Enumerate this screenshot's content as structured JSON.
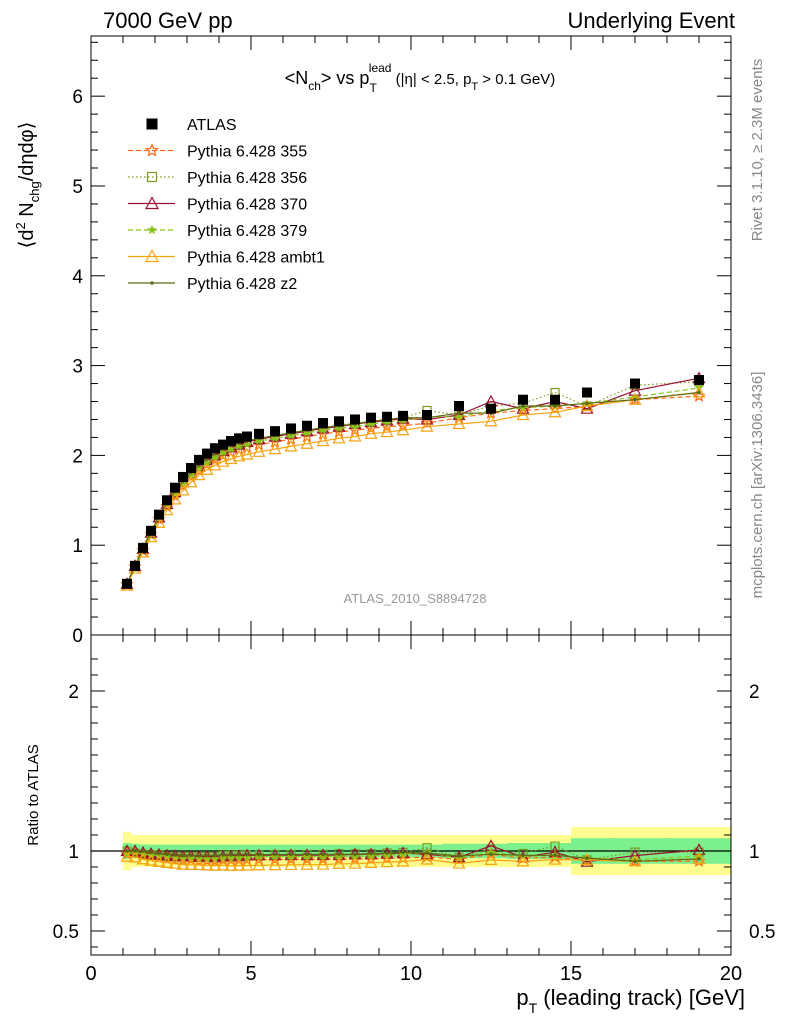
{
  "header": {
    "left": "7000 GeV pp",
    "right": "Underlying Event"
  },
  "side_labels": {
    "rivet": "Rivet 3.1.10, ≥ 2.3M events",
    "mcplots": "mcplots.cern.ch [arXiv:1306.3436]"
  },
  "analysis_id": "ATLAS_2010_S8894728",
  "chart_data": [
    {
      "type": "scatter",
      "title": "<N_ch> vs p_T^lead (|η| < 2.5, p_T > 0.1 GeV)",
      "title_parts": {
        "a": "<N",
        "a_sub": "ch",
        "b": "> vs p",
        "b_sub": "T",
        "b_sup": "lead",
        "c": " (|η| < 2.5, p",
        "c_sub": "T",
        "d": " > 0.1 GeV)"
      },
      "ylabel": "⟨d² N_chg/dηdφ⟩",
      "ylabel_parts": {
        "a": "⟨d",
        "a_sup": "2",
        "b": " N",
        "b_sub": "chg",
        "c": "/dηdφ⟩"
      },
      "xlim": [
        0,
        20
      ],
      "ylim": [
        0,
        6.67
      ],
      "yticks": [
        0,
        1,
        2,
        3,
        4,
        5,
        6
      ],
      "ytick_labels": [
        "0",
        "1",
        "2",
        "3",
        "4",
        "5",
        "6"
      ],
      "legend_position": "top-left",
      "x": [
        1.125,
        1.375,
        1.625,
        1.875,
        2.125,
        2.375,
        2.625,
        2.875,
        3.125,
        3.375,
        3.625,
        3.875,
        4.125,
        4.375,
        4.625,
        4.875,
        5.25,
        5.75,
        6.25,
        6.75,
        7.25,
        7.75,
        8.25,
        8.75,
        9.25,
        9.75,
        10.5,
        11.5,
        12.5,
        13.5,
        14.5,
        15.5,
        17.0,
        19.0
      ],
      "series": [
        {
          "name": "ATLAS",
          "color": "#000000",
          "marker": "square-filled",
          "line": "none",
          "values": [
            0.57,
            0.77,
            0.97,
            1.16,
            1.34,
            1.5,
            1.64,
            1.76,
            1.86,
            1.95,
            2.02,
            2.08,
            2.12,
            2.16,
            2.19,
            2.21,
            2.24,
            2.27,
            2.3,
            2.33,
            2.36,
            2.38,
            2.4,
            2.42,
            2.43,
            2.44,
            2.45,
            2.55,
            2.52,
            2.62,
            2.62,
            2.7,
            2.8,
            2.84
          ]
        },
        {
          "name": "Pythia 6.428 355",
          "color": "#ff6a18",
          "marker": "star-open",
          "line": "dashed",
          "values": [
            0.56,
            0.76,
            0.94,
            1.12,
            1.29,
            1.43,
            1.55,
            1.66,
            1.76,
            1.83,
            1.9,
            1.95,
            2.0,
            2.04,
            2.07,
            2.09,
            2.12,
            2.15,
            2.18,
            2.21,
            2.24,
            2.26,
            2.28,
            2.3,
            2.32,
            2.33,
            2.36,
            2.42,
            2.47,
            2.5,
            2.52,
            2.55,
            2.62,
            2.66
          ]
        },
        {
          "name": "Pythia 6.428 356",
          "color": "#7b9a1e",
          "marker": "square-open",
          "line": "dotted",
          "values": [
            0.57,
            0.76,
            0.95,
            1.13,
            1.31,
            1.45,
            1.58,
            1.7,
            1.8,
            1.88,
            1.95,
            2.01,
            2.06,
            2.1,
            2.13,
            2.15,
            2.18,
            2.22,
            2.25,
            2.28,
            2.31,
            2.34,
            2.36,
            2.38,
            2.4,
            2.42,
            2.5,
            2.45,
            2.55,
            2.58,
            2.7,
            2.55,
            2.78,
            2.82
          ]
        },
        {
          "name": "Pythia 6.428 370",
          "color": "#9b1030",
          "marker": "triangle-open",
          "line": "solid",
          "values": [
            0.57,
            0.77,
            0.96,
            1.14,
            1.31,
            1.46,
            1.59,
            1.7,
            1.8,
            1.88,
            1.95,
            2.0,
            2.05,
            2.09,
            2.12,
            2.15,
            2.18,
            2.21,
            2.24,
            2.27,
            2.3,
            2.32,
            2.35,
            2.37,
            2.39,
            2.41,
            2.4,
            2.45,
            2.6,
            2.52,
            2.6,
            2.52,
            2.72,
            2.86
          ]
        },
        {
          "name": "Pythia 6.428 379",
          "color": "#88c418",
          "marker": "star-filled",
          "line": "dashed",
          "values": [
            0.56,
            0.76,
            0.95,
            1.13,
            1.3,
            1.45,
            1.57,
            1.68,
            1.78,
            1.86,
            1.92,
            1.98,
            2.03,
            2.07,
            2.1,
            2.12,
            2.16,
            2.19,
            2.22,
            2.25,
            2.28,
            2.3,
            2.32,
            2.35,
            2.37,
            2.39,
            2.43,
            2.43,
            2.5,
            2.53,
            2.55,
            2.58,
            2.65,
            2.75
          ]
        },
        {
          "name": "Pythia 6.428 ambt1",
          "color": "#f5a30f",
          "marker": "triangle-open",
          "line": "solid",
          "values": [
            0.55,
            0.74,
            0.92,
            1.09,
            1.25,
            1.39,
            1.51,
            1.61,
            1.7,
            1.78,
            1.84,
            1.89,
            1.93,
            1.96,
            1.99,
            2.01,
            2.04,
            2.07,
            2.1,
            2.13,
            2.16,
            2.19,
            2.21,
            2.24,
            2.26,
            2.28,
            2.32,
            2.35,
            2.38,
            2.45,
            2.48,
            2.55,
            2.62,
            2.7
          ]
        },
        {
          "name": "Pythia 6.428 z2",
          "color": "#5c6b12",
          "marker": "dot",
          "line": "solid",
          "values": [
            0.57,
            0.77,
            0.97,
            1.15,
            1.32,
            1.47,
            1.6,
            1.71,
            1.81,
            1.89,
            1.96,
            2.02,
            2.07,
            2.11,
            2.14,
            2.16,
            2.19,
            2.22,
            2.25,
            2.28,
            2.31,
            2.33,
            2.35,
            2.38,
            2.4,
            2.42,
            2.42,
            2.47,
            2.47,
            2.55,
            2.55,
            2.58,
            2.62,
            2.7
          ]
        }
      ]
    },
    {
      "type": "scatter",
      "ylabel": "Ratio to ATLAS",
      "xlabel": "p_T (leading track) [GeV]",
      "xlabel_parts": {
        "a": "p",
        "a_sub": "T",
        "b": " (leading track) [GeV]"
      },
      "xlim": [
        0,
        20
      ],
      "ylim": [
        0.35,
        2.35
      ],
      "xticks": [
        0,
        5,
        10,
        15,
        20
      ],
      "xtick_labels": [
        "0",
        "5",
        "10",
        "15",
        "20"
      ],
      "yticks": [
        0.5,
        1,
        2
      ],
      "ytick_labels": [
        "0.5",
        "1",
        "2"
      ],
      "band_colors": {
        "inner": "#7cf08c",
        "outer": "#fdfd90"
      },
      "band_inner": [
        0.05,
        0.045,
        0.04,
        0.04,
        0.04,
        0.04,
        0.04,
        0.04,
        0.04,
        0.04,
        0.04,
        0.04,
        0.04,
        0.04,
        0.04,
        0.04,
        0.04,
        0.04,
        0.04,
        0.04,
        0.04,
        0.04,
        0.04,
        0.04,
        0.04,
        0.04,
        0.04,
        0.045,
        0.045,
        0.05,
        0.05,
        0.08,
        0.08,
        0.08
      ],
      "band_outer": [
        0.12,
        0.1,
        0.1,
        0.1,
        0.1,
        0.1,
        0.1,
        0.1,
        0.1,
        0.1,
        0.1,
        0.1,
        0.1,
        0.1,
        0.1,
        0.1,
        0.1,
        0.1,
        0.1,
        0.1,
        0.1,
        0.1,
        0.1,
        0.1,
        0.1,
        0.1,
        0.1,
        0.1,
        0.1,
        0.1,
        0.1,
        0.15,
        0.15,
        0.15
      ]
    }
  ]
}
